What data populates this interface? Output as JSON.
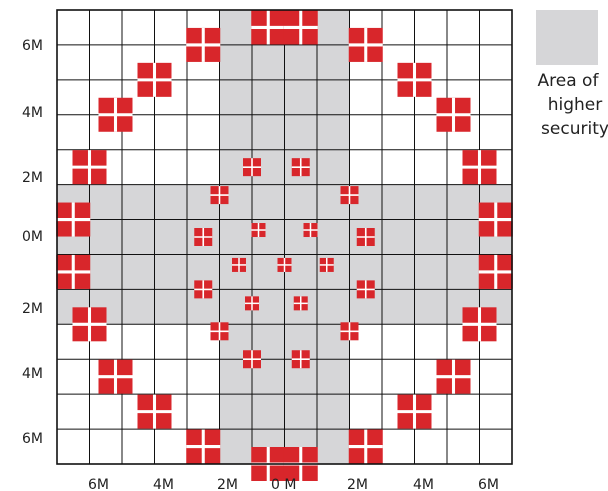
{
  "y_labels": [
    "6M",
    "4M",
    "2M",
    "0M",
    "2M",
    "4M",
    "6M"
  ],
  "x_labels": [
    "6M",
    "4M",
    "2M",
    "0 M",
    "2M",
    "4M",
    "6M"
  ],
  "legend": {
    "label_line1": "Area of",
    "label_line2": "higher",
    "label_line3": "security"
  },
  "colors": {
    "secure_area": "#d6d6d8",
    "light": "#d8262b",
    "grid_line": "#111111",
    "background": "#ffffff"
  },
  "grid": {
    "columns": 14,
    "rows": 13,
    "shaded_columns": [
      5,
      6,
      7,
      8
    ],
    "shaded_rows": [
      5,
      6,
      7,
      8
    ]
  },
  "lights": {
    "outer_ring": [
      [
        6.5,
        0.5
      ],
      [
        7.5,
        0.5
      ],
      [
        4.5,
        1.0
      ],
      [
        9.5,
        1.0
      ],
      [
        3.0,
        2.0
      ],
      [
        11.0,
        2.0
      ],
      [
        1.8,
        3.0
      ],
      [
        12.2,
        3.0
      ],
      [
        1.0,
        4.5
      ],
      [
        13.0,
        4.5
      ],
      [
        0.5,
        6.0
      ],
      [
        13.5,
        6.0
      ],
      [
        0.5,
        7.5
      ],
      [
        13.5,
        7.5
      ],
      [
        1.0,
        9.0
      ],
      [
        13.0,
        9.0
      ],
      [
        1.8,
        10.5
      ],
      [
        12.2,
        10.5
      ],
      [
        3.0,
        11.5
      ],
      [
        11.0,
        11.5
      ],
      [
        4.5,
        12.5
      ],
      [
        9.5,
        12.5
      ],
      [
        6.5,
        13.0
      ],
      [
        7.5,
        13.0
      ]
    ],
    "middle_ring": [
      [
        6.0,
        4.5
      ],
      [
        7.5,
        4.5
      ],
      [
        5.0,
        5.3
      ],
      [
        9.0,
        5.3
      ],
      [
        4.5,
        6.5
      ],
      [
        9.5,
        6.5
      ],
      [
        4.5,
        8.0
      ],
      [
        9.5,
        8.0
      ],
      [
        5.0,
        9.2
      ],
      [
        9.0,
        9.2
      ],
      [
        6.0,
        10.0
      ],
      [
        7.5,
        10.0
      ]
    ],
    "inner_ring": [
      [
        6.2,
        6.3
      ],
      [
        7.8,
        6.3
      ],
      [
        5.6,
        7.3
      ],
      [
        7.0,
        7.3
      ],
      [
        8.3,
        7.3
      ],
      [
        6.0,
        8.4
      ],
      [
        7.5,
        8.4
      ]
    ]
  }
}
